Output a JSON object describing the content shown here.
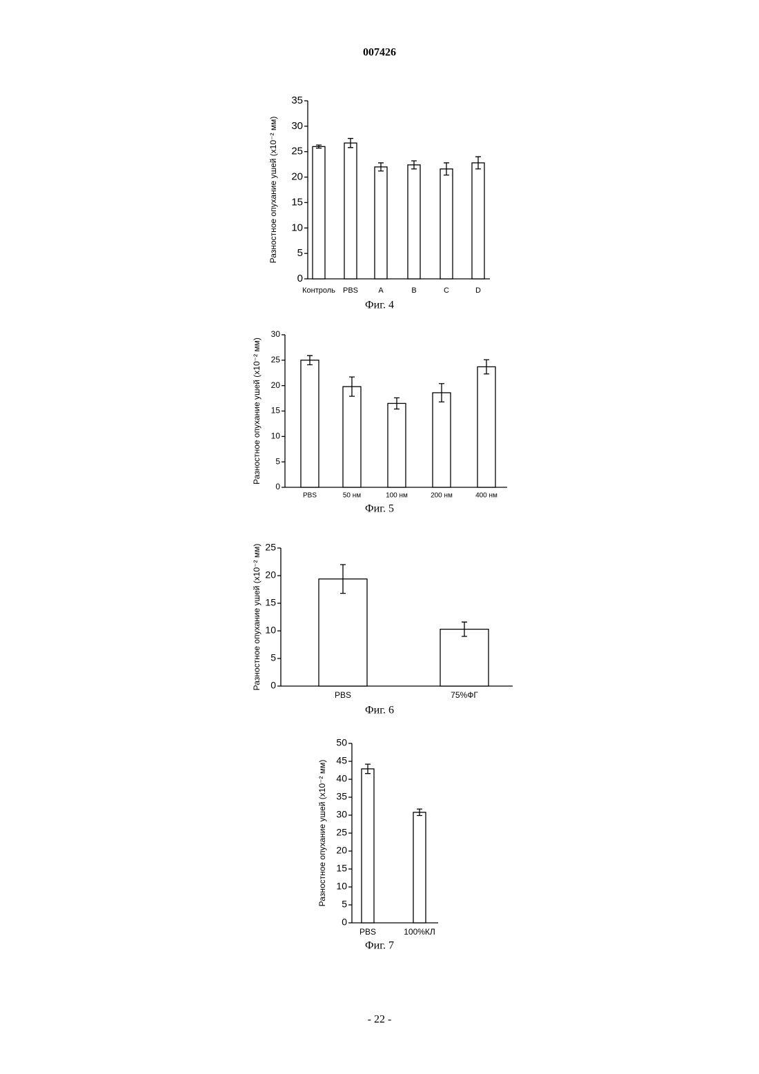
{
  "page": {
    "header": "007426",
    "footer": "- 22 -"
  },
  "chart_data": [
    {
      "type": "bar",
      "caption": "Фиг. 4",
      "ylabel": "Разностное опухание ушей (x10⁻² мм)",
      "categories": [
        "Контроль",
        "PBS",
        "A",
        "B",
        "C",
        "D"
      ],
      "values": [
        26,
        26.7,
        22,
        22.4,
        21.6,
        22.8
      ],
      "errors": [
        0.3,
        0.9,
        0.8,
        0.8,
        1.2,
        1.2
      ],
      "color": "#ffffff",
      "ylim": [
        0,
        35
      ],
      "yticks": [
        0,
        5,
        10,
        15,
        20,
        25,
        30,
        35
      ]
    },
    {
      "type": "bar",
      "caption": "Фиг. 5",
      "ylabel": "Разностное опухание ушей (x10⁻² мм)",
      "categories": [
        "PBS",
        "50 нм",
        "100 нм",
        "200 нм",
        "400 нм"
      ],
      "values": [
        25,
        19.8,
        16.5,
        18.6,
        23.7
      ],
      "errors": [
        0.9,
        1.9,
        1.1,
        1.8,
        1.4
      ],
      "color": "#ffffff",
      "ylim": [
        0,
        30
      ],
      "yticks": [
        0,
        5,
        10,
        15,
        20,
        25,
        30
      ]
    },
    {
      "type": "bar",
      "caption": "Фиг. 6",
      "ylabel": "Разностное опухание ушей (x10⁻² мм)",
      "categories": [
        "PBS",
        "75%ФГ"
      ],
      "values": [
        19.4,
        10.3
      ],
      "errors": [
        2.6,
        1.3
      ],
      "color": "#ffffff",
      "ylim": [
        0,
        25
      ],
      "yticks": [
        0,
        5,
        10,
        15,
        20,
        25
      ]
    },
    {
      "type": "bar",
      "caption": "Фиг. 7",
      "ylabel": "Разностное опухание ушей (x10⁻² мм)",
      "categories": [
        "PBS",
        "100%КЛ"
      ],
      "values": [
        42.9,
        30.8
      ],
      "errors": [
        1.3,
        0.9
      ],
      "color": "#ffffff",
      "ylim": [
        0,
        50
      ],
      "yticks": [
        0,
        5,
        10,
        15,
        20,
        25,
        30,
        35,
        40,
        45,
        50
      ]
    }
  ]
}
